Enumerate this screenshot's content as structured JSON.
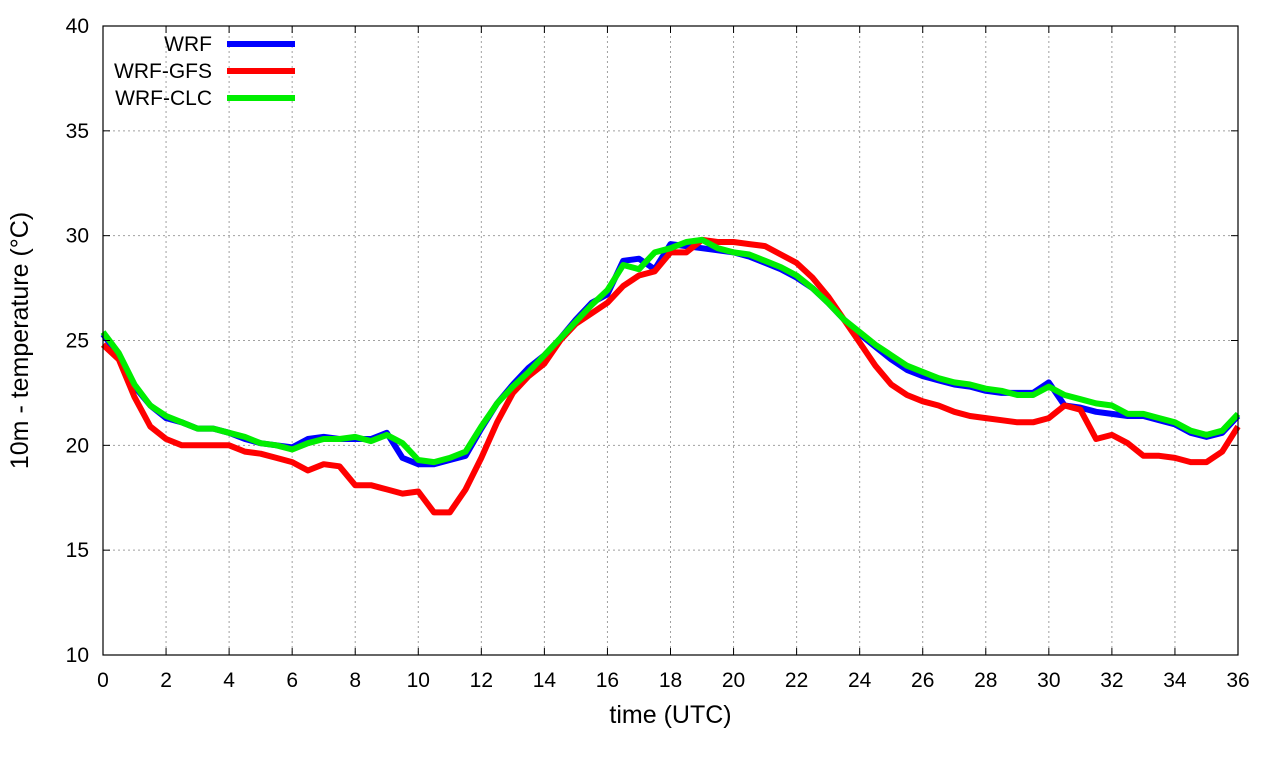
{
  "chart_data": {
    "type": "line",
    "title": "",
    "xlabel": "time (UTC)",
    "ylabel": "10m - temperature (°C)",
    "xlim": [
      0,
      36
    ],
    "ylim": [
      10,
      40
    ],
    "x_ticks": [
      0,
      2,
      4,
      6,
      8,
      10,
      12,
      14,
      16,
      18,
      20,
      22,
      24,
      26,
      28,
      30,
      32,
      34,
      36
    ],
    "y_ticks": [
      10,
      15,
      20,
      25,
      30,
      35,
      40
    ],
    "grid": true,
    "legend_position": "top-left",
    "x": [
      0,
      0.5,
      1,
      1.5,
      2,
      2.5,
      3,
      3.5,
      4,
      4.5,
      5,
      5.5,
      6,
      6.5,
      7,
      7.5,
      8,
      8.5,
      9,
      9.5,
      10,
      10.5,
      11,
      11.5,
      12,
      12.5,
      13,
      13.5,
      14,
      14.5,
      15,
      15.5,
      16,
      16.5,
      17,
      17.5,
      18,
      18.5,
      19,
      19.5,
      20,
      20.5,
      21,
      21.5,
      22,
      22.5,
      23,
      23.5,
      24,
      24.5,
      25,
      25.5,
      26,
      26.5,
      27,
      27.5,
      28,
      28.5,
      29,
      29.5,
      30,
      30.5,
      31,
      31.5,
      32,
      32.5,
      33,
      33.5,
      34,
      34.5,
      35,
      35.5,
      36
    ],
    "series": [
      {
        "name": "WRF",
        "color": "#0000ff",
        "values": [
          25.3,
          24.3,
          22.8,
          21.9,
          21.3,
          21.1,
          20.8,
          20.8,
          20.6,
          20.3,
          20.1,
          20.0,
          19.9,
          20.3,
          20.4,
          20.3,
          20.3,
          20.3,
          20.6,
          19.4,
          19.1,
          19.1,
          19.3,
          19.5,
          20.8,
          22.0,
          22.9,
          23.7,
          24.3,
          25.1,
          26.0,
          26.8,
          27.2,
          28.8,
          28.9,
          28.4,
          29.6,
          29.5,
          29.4,
          29.3,
          29.2,
          29.0,
          28.7,
          28.4,
          28.0,
          27.5,
          26.8,
          26.0,
          25.3,
          24.7,
          24.1,
          23.6,
          23.3,
          23.1,
          22.9,
          22.8,
          22.6,
          22.5,
          22.5,
          22.5,
          23.0,
          21.9,
          21.8,
          21.6,
          21.5,
          21.4,
          21.4,
          21.2,
          21.0,
          20.6,
          20.4,
          20.6,
          21.4
        ]
      },
      {
        "name": "WRF-GFS",
        "color": "#ff0000",
        "values": [
          24.8,
          24.1,
          22.3,
          20.9,
          20.3,
          20.0,
          20.0,
          20.0,
          20.0,
          19.7,
          19.6,
          19.4,
          19.2,
          18.8,
          19.1,
          19.0,
          18.1,
          18.1,
          17.9,
          17.7,
          17.8,
          16.8,
          16.8,
          17.9,
          19.4,
          21.1,
          22.5,
          23.3,
          23.9,
          25.0,
          25.8,
          26.3,
          26.8,
          27.6,
          28.1,
          28.3,
          29.2,
          29.2,
          29.8,
          29.7,
          29.7,
          29.6,
          29.5,
          29.1,
          28.7,
          28.0,
          27.1,
          26.0,
          24.9,
          23.8,
          22.9,
          22.4,
          22.1,
          21.9,
          21.6,
          21.4,
          21.3,
          21.2,
          21.1,
          21.1,
          21.3,
          21.9,
          21.7,
          20.3,
          20.5,
          20.1,
          19.5,
          19.5,
          19.4,
          19.2,
          19.2,
          19.7,
          20.9
        ]
      },
      {
        "name": "WRF-CLC",
        "color": "#00ee00",
        "values": [
          25.4,
          24.4,
          22.9,
          21.9,
          21.4,
          21.1,
          20.8,
          20.8,
          20.6,
          20.4,
          20.1,
          20.0,
          19.8,
          20.1,
          20.3,
          20.3,
          20.4,
          20.2,
          20.5,
          20.1,
          19.3,
          19.2,
          19.4,
          19.7,
          20.9,
          22.0,
          22.8,
          23.5,
          24.3,
          25.1,
          25.9,
          26.7,
          27.4,
          28.6,
          28.4,
          29.2,
          29.4,
          29.7,
          29.8,
          29.4,
          29.2,
          29.1,
          28.8,
          28.5,
          28.1,
          27.5,
          26.8,
          26.0,
          25.4,
          24.8,
          24.3,
          23.8,
          23.5,
          23.2,
          23.0,
          22.9,
          22.7,
          22.6,
          22.4,
          22.4,
          22.8,
          22.4,
          22.2,
          22.0,
          21.9,
          21.5,
          21.5,
          21.3,
          21.1,
          20.7,
          20.5,
          20.7,
          21.5
        ]
      }
    ]
  }
}
